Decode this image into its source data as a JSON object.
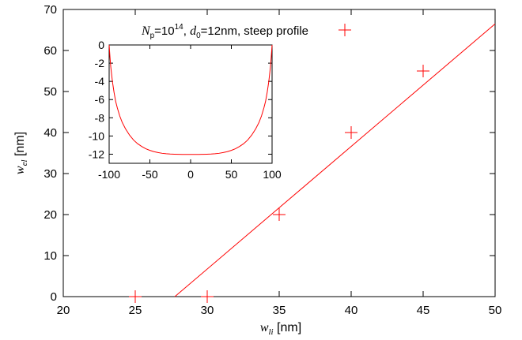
{
  "chart_data": [
    {
      "type": "scatter",
      "xlabel": {
        "var": "w",
        "sub": "li",
        "unit": " [nm]"
      },
      "ylabel": {
        "var": "w",
        "sub": "el",
        "unit": " [nm]"
      },
      "xlim": [
        20,
        50
      ],
      "ylim": [
        0,
        70
      ],
      "xticks": [
        "20",
        "25",
        "30",
        "35",
        "40",
        "45",
        "50"
      ],
      "yticks": [
        "0",
        "10",
        "20",
        "30",
        "40",
        "50",
        "60",
        "70"
      ],
      "grid": false,
      "legend": {
        "placement": "top-right",
        "text": {
          "n": "N",
          "n_sub": "p",
          "eq1": "=10",
          "exp": "14",
          "sep": ", ",
          "d": "d",
          "d_sub": "0",
          "rest": "=12nm, steep profile"
        }
      },
      "color": "#ff0000",
      "series": [
        {
          "type": "scatter",
          "marker": "plus",
          "x": [
            25,
            30,
            35,
            40,
            45
          ],
          "y": [
            0,
            0,
            20,
            40,
            55
          ]
        },
        {
          "type": "line",
          "x": [
            27.75,
            50
          ],
          "y": [
            0,
            66.5
          ]
        }
      ]
    },
    {
      "type": "line",
      "placement": "inset-top-left",
      "xlim": [
        -100,
        100
      ],
      "ylim": [
        -13,
        0
      ],
      "xticks": [
        "-100",
        "-50",
        "0",
        "50",
        "100"
      ],
      "yticks": [
        "0",
        "-2",
        "-4",
        "-6",
        "-8",
        "-10",
        "-12"
      ],
      "color": "#ff0000",
      "series": [
        {
          "type": "line",
          "description_function": "well",
          "x": [
            -100,
            -99,
            -98,
            -96,
            -94,
            -92,
            -90,
            -87,
            -84,
            -80,
            -75,
            -70,
            -65,
            -60,
            -55,
            -50,
            -45,
            -40,
            -35,
            -30,
            -25,
            -20,
            -15,
            -10,
            -5,
            0,
            5,
            10,
            15,
            20,
            25,
            30,
            35,
            40,
            45,
            50,
            55,
            60,
            65,
            70,
            75,
            80,
            84,
            87,
            90,
            92,
            94,
            96,
            98,
            99,
            100
          ],
          "y": [
            0,
            -1.3,
            -2.4,
            -4.0,
            -5.2,
            -6.2,
            -6.9,
            -7.8,
            -8.5,
            -9.2,
            -9.9,
            -10.45,
            -10.85,
            -11.15,
            -11.4,
            -11.58,
            -11.72,
            -11.82,
            -11.9,
            -11.95,
            -11.98,
            -12.0,
            -12.01,
            -12.02,
            -12.02,
            -12.02,
            -12.02,
            -12.02,
            -12.01,
            -12.0,
            -11.98,
            -11.95,
            -11.9,
            -11.82,
            -11.72,
            -11.58,
            -11.4,
            -11.15,
            -10.85,
            -10.45,
            -9.9,
            -9.2,
            -8.5,
            -7.8,
            -6.9,
            -6.2,
            -5.2,
            -4.0,
            -2.4,
            -1.3,
            0
          ]
        }
      ]
    }
  ]
}
